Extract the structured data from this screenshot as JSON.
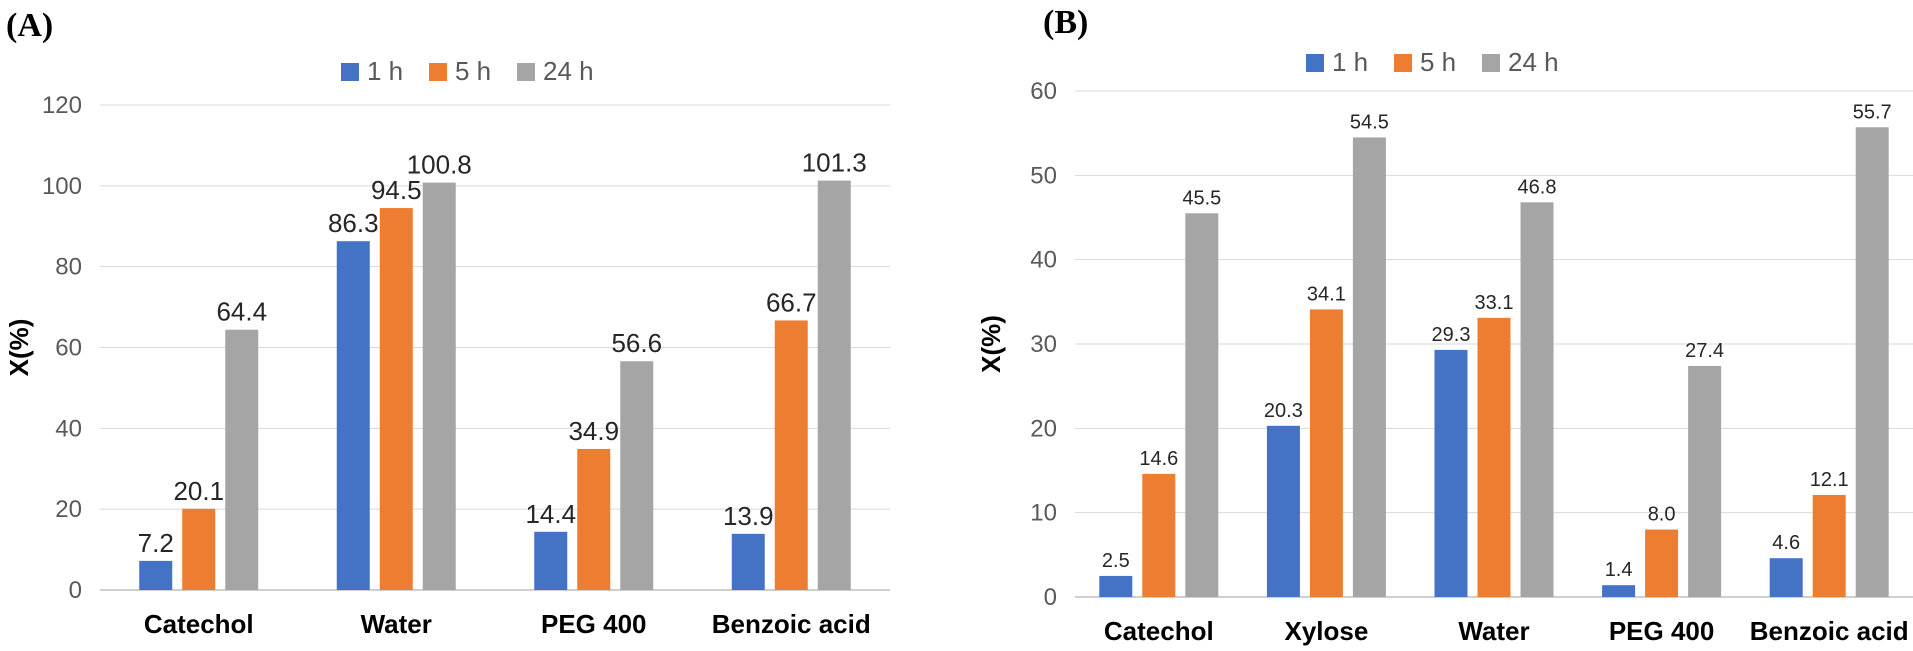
{
  "chart_data": [
    {
      "type": "bar",
      "panel_label": "(A)",
      "ylabel": "X(%)",
      "xlabel": "",
      "ylim": [
        0,
        120
      ],
      "yticks": [
        0,
        20,
        40,
        60,
        80,
        100,
        120
      ],
      "grid": true,
      "legend_position": "top-center",
      "categories": [
        "Catechol",
        "Water",
        "PEG 400",
        "Benzoic acid"
      ],
      "series": [
        {
          "name": "1 h",
          "color": "#4472C4",
          "values": [
            7.2,
            86.3,
            14.4,
            13.9
          ],
          "labels": [
            "7.2",
            "86.3",
            "14.4",
            "13.9"
          ]
        },
        {
          "name": "5 h",
          "color": "#ED7D31",
          "values": [
            20.1,
            94.5,
            34.9,
            66.7
          ],
          "labels": [
            "20.1",
            "94.5",
            "34.9",
            "66.7"
          ]
        },
        {
          "name": "24 h",
          "color": "#A5A5A5",
          "values": [
            64.4,
            100.8,
            56.6,
            101.3
          ],
          "labels": [
            "64.4",
            "100.8",
            "56.6",
            "101.3"
          ]
        }
      ]
    },
    {
      "type": "bar",
      "panel_label": "(B)",
      "ylabel": "X(%)",
      "xlabel": "",
      "ylim": [
        0,
        60
      ],
      "yticks": [
        0,
        10,
        20,
        30,
        40,
        50,
        60
      ],
      "grid": true,
      "legend_position": "top-center",
      "categories": [
        "Catechol",
        "Xylose",
        "Water",
        "PEG 400",
        "Benzoic acid"
      ],
      "series": [
        {
          "name": "1 h",
          "color": "#4472C4",
          "values": [
            2.5,
            20.3,
            29.3,
            1.4,
            4.6
          ],
          "labels": [
            "2.5",
            "20.3",
            "29.3",
            "1.4",
            "4.6"
          ]
        },
        {
          "name": "5 h",
          "color": "#ED7D31",
          "values": [
            14.6,
            34.1,
            33.1,
            8.0,
            12.1
          ],
          "labels": [
            "14.6",
            "34.1",
            "33.1",
            "8.0",
            "12.1"
          ]
        },
        {
          "name": "24 h",
          "color": "#A5A5A5",
          "values": [
            45.5,
            54.5,
            46.8,
            27.4,
            55.7
          ],
          "labels": [
            "45.5",
            "54.5",
            "46.8",
            "27.4",
            "55.7"
          ]
        }
      ]
    }
  ]
}
